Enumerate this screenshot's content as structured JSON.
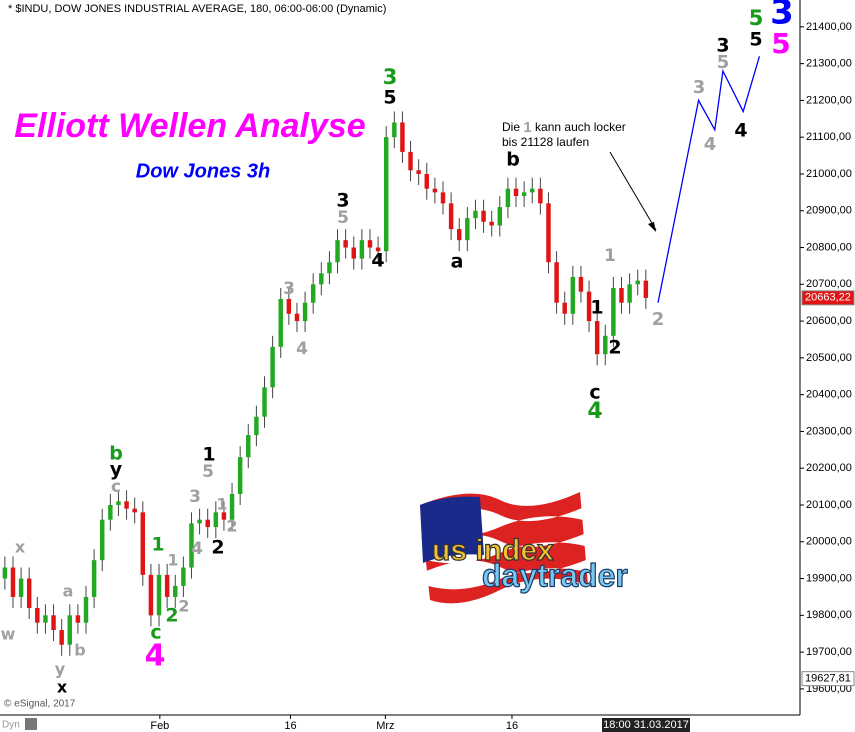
{
  "chart_data": {
    "type": "candlestick",
    "title": "* $INDU, DOW JONES INDUSTRIAL AVERAGE, 180, 06:00-06:00 (Dynamic)",
    "heading": "Elliott Wellen Analyse",
    "subheading": "Dow Jones 3h",
    "x": [
      0,
      1,
      2,
      3,
      4,
      5,
      6,
      7,
      8,
      9,
      10,
      11,
      12,
      13,
      14,
      15,
      16,
      17,
      18,
      19,
      20,
      21,
      22,
      23,
      24,
      25,
      26,
      27,
      28,
      29,
      30,
      31,
      32,
      33,
      34,
      35,
      36,
      37,
      38,
      39,
      40,
      41,
      42,
      43,
      44,
      45,
      46,
      47,
      48,
      49,
      50,
      51,
      52,
      53,
      54,
      55,
      56,
      57,
      58,
      59,
      60,
      61,
      62,
      63,
      64,
      65,
      66,
      67,
      68,
      69,
      70,
      71,
      72,
      73,
      74,
      75,
      76,
      77,
      78,
      79
    ],
    "open": [
      19900,
      19930,
      19850,
      19900,
      19820,
      19780,
      19800,
      19760,
      19720,
      19800,
      19780,
      19850,
      19950,
      20060,
      20100,
      20110,
      20090,
      20080,
      19910,
      19800,
      19910,
      19850,
      19880,
      19930,
      20050,
      20060,
      20040,
      20080,
      20060,
      20130,
      20230,
      20290,
      20340,
      20420,
      20530,
      20660,
      20620,
      20600,
      20650,
      20700,
      20730,
      20760,
      20820,
      20800,
      20770,
      20820,
      20800,
      20790,
      21100,
      21140,
      21060,
      21010,
      21000,
      20960,
      20950,
      20920,
      20850,
      20820,
      20880,
      20900,
      20870,
      20860,
      20910,
      20960,
      20940,
      20950,
      20960,
      20920,
      20760,
      20650,
      20620,
      20720,
      20680,
      20600,
      20510,
      20560,
      20690,
      20650,
      20700,
      20710
    ],
    "high": [
      19960,
      19960,
      19930,
      19930,
      19850,
      19830,
      19830,
      19790,
      19830,
      19830,
      19880,
      19980,
      20090,
      20130,
      20140,
      20140,
      20120,
      20110,
      19940,
      19940,
      19940,
      19910,
      19960,
      20080,
      20090,
      20090,
      20110,
      20110,
      20160,
      20260,
      20320,
      20370,
      20450,
      20560,
      20690,
      20690,
      20650,
      20680,
      20730,
      20760,
      20790,
      20850,
      20850,
      20830,
      20850,
      20850,
      20830,
      21130,
      21170,
      21170,
      21090,
      21040,
      21030,
      20990,
      20980,
      20950,
      20880,
      20910,
      20930,
      20930,
      20900,
      20940,
      20990,
      20990,
      20980,
      20990,
      20990,
      20950,
      20790,
      20680,
      20750,
      20750,
      20710,
      20630,
      20590,
      20720,
      20720,
      20730,
      20740,
      20740
    ],
    "low": [
      19870,
      19820,
      19820,
      19790,
      19750,
      19750,
      19730,
      19690,
      19690,
      19750,
      19750,
      19820,
      19920,
      20030,
      20070,
      20060,
      20050,
      19880,
      19770,
      19770,
      19820,
      19820,
      19850,
      19900,
      20020,
      20010,
      20010,
      20030,
      20030,
      20100,
      20200,
      20260,
      20310,
      20390,
      20500,
      20590,
      20570,
      20570,
      20620,
      20670,
      20700,
      20730,
      20770,
      20740,
      20740,
      20770,
      20760,
      20760,
      21070,
      21030,
      20980,
      20970,
      20930,
      20920,
      20890,
      20820,
      20790,
      20790,
      20850,
      20840,
      20830,
      20830,
      20880,
      20910,
      20910,
      20920,
      20890,
      20730,
      20620,
      20590,
      20590,
      20650,
      20570,
      20480,
      20480,
      20530,
      20620,
      20620,
      20670,
      20633
    ],
    "close": [
      19930,
      19850,
      19900,
      19820,
      19780,
      19800,
      19760,
      19720,
      19800,
      19780,
      19850,
      19950,
      20060,
      20100,
      20110,
      20090,
      20080,
      19910,
      19800,
      19910,
      19850,
      19880,
      19930,
      20050,
      20060,
      20040,
      20080,
      20060,
      20130,
      20230,
      20290,
      20340,
      20420,
      20530,
      20660,
      20620,
      20600,
      20650,
      20700,
      20730,
      20760,
      20820,
      20800,
      20770,
      20820,
      20800,
      20790,
      21100,
      21140,
      21060,
      21010,
      21000,
      20960,
      20950,
      20920,
      20850,
      20820,
      20880,
      20900,
      20870,
      20860,
      20910,
      20960,
      20940,
      20950,
      20960,
      20920,
      20760,
      20650,
      20620,
      20720,
      20680,
      20600,
      20510,
      20560,
      20690,
      20650,
      20700,
      20710,
      20663
    ],
    "up_color": "#22a822",
    "down_color": "#e01414",
    "projection": {
      "color": "#0000ff",
      "x": [
        80.5,
        85.5,
        87.5,
        88.5,
        91,
        93
      ],
      "values": [
        20650,
        21200,
        21120,
        21280,
        21170,
        21320
      ]
    },
    "xlim": [
      -0.6,
      98
    ],
    "ylim": [
      19529,
      21473
    ],
    "xticks": [
      {
        "value": 19.1,
        "label": "Feb"
      },
      {
        "value": 35.2,
        "label": "16"
      },
      {
        "value": 46.9,
        "label": "Mrz"
      },
      {
        "value": 62.5,
        "label": "16"
      }
    ],
    "yticks": [
      {
        "value": 19600,
        "label": "19600,00"
      },
      {
        "value": 19700,
        "label": "19700,00"
      },
      {
        "value": 19800,
        "label": "19800,00"
      },
      {
        "value": 19900,
        "label": "19900,00"
      },
      {
        "value": 20000,
        "label": "20000,00"
      },
      {
        "value": 20100,
        "label": "20100,00"
      },
      {
        "value": 20200,
        "label": "20200,00"
      },
      {
        "value": 20300,
        "label": "20300,00"
      },
      {
        "value": 20400,
        "label": "20400,00"
      },
      {
        "value": 20500,
        "label": "20500,00"
      },
      {
        "value": 20600,
        "label": "20600,00"
      },
      {
        "value": 20700,
        "label": "20700,00"
      },
      {
        "value": 20800,
        "label": "20800,00"
      },
      {
        "value": 20900,
        "label": "20900,00"
      },
      {
        "value": 21000,
        "label": "21000,00"
      },
      {
        "value": 21100,
        "label": "21100,00"
      },
      {
        "value": 21200,
        "label": "21200,00"
      },
      {
        "value": 21300,
        "label": "21300,00"
      },
      {
        "value": 21400,
        "label": "21400,00"
      }
    ],
    "last_price": {
      "value": 20663.22,
      "label": "20663,22"
    },
    "low_price": {
      "value": 19627.81,
      "label": "19627,81"
    },
    "annotation": {
      "before": "Die",
      "wave": "1",
      "after": "kann auch locker",
      "line2": "bis 21128 laufen"
    },
    "wave_labels": [
      {
        "text": "x",
        "color": "#a0a0a0"
      },
      {
        "text": "w",
        "color": "#a0a0a0"
      },
      {
        "text": "a",
        "color": "#a0a0a0"
      },
      {
        "text": "y",
        "color": "#a0a0a0"
      },
      {
        "text": "x",
        "color": "#000000"
      },
      {
        "text": "b",
        "color": "#a0a0a0"
      },
      {
        "text": "b",
        "color": "#1a9a1a"
      },
      {
        "text": "y",
        "color": "#000000"
      },
      {
        "text": "c",
        "color": "#a0a0a0"
      },
      {
        "text": "1",
        "color": "#1a9a1a"
      },
      {
        "text": "1",
        "color": "#a0a0a0"
      },
      {
        "text": "2",
        "color": "#1a9a1a"
      },
      {
        "text": "2",
        "color": "#a0a0a0"
      },
      {
        "text": "c",
        "color": "#1a9a1a"
      },
      {
        "text": "4",
        "color": "#ff00ff"
      },
      {
        "text": "1",
        "color": "#000000"
      },
      {
        "text": "5",
        "color": "#a0a0a0"
      },
      {
        "text": "3",
        "color": "#a0a0a0"
      },
      {
        "text": "1",
        "color": "#a0a0a0"
      },
      {
        "text": "2",
        "color": "#a0a0a0"
      },
      {
        "text": "4",
        "color": "#a0a0a0"
      },
      {
        "text": "2",
        "color": "#000000"
      },
      {
        "text": "3",
        "color": "#a0a0a0"
      },
      {
        "text": "4",
        "color": "#a0a0a0"
      },
      {
        "text": "3",
        "color": "#000000"
      },
      {
        "text": "5",
        "color": "#a0a0a0"
      },
      {
        "text": "4",
        "color": "#000000"
      },
      {
        "text": "3",
        "color": "#1a9a1a"
      },
      {
        "text": "5",
        "color": "#000000"
      },
      {
        "text": "b",
        "color": "#000000"
      },
      {
        "text": "a",
        "color": "#000000"
      },
      {
        "text": "1",
        "color": "#a0a0a0"
      },
      {
        "text": "1",
        "color": "#000000"
      },
      {
        "text": "2",
        "color": "#000000"
      },
      {
        "text": "c",
        "color": "#000000"
      },
      {
        "text": "4",
        "color": "#1a9a1a"
      },
      {
        "text": "2",
        "color": "#a0a0a0"
      },
      {
        "text": "3",
        "color": "#a0a0a0"
      },
      {
        "text": "4",
        "color": "#a0a0a0"
      },
      {
        "text": "3",
        "color": "#000000"
      },
      {
        "text": "5",
        "color": "#a0a0a0"
      },
      {
        "text": "4",
        "color": "#000000"
      },
      {
        "text": "5",
        "color": "#1a9a1a"
      },
      {
        "text": "5",
        "color": "#000000"
      },
      {
        "text": "3",
        "color": "#0000ff"
      },
      {
        "text": "5",
        "color": "#ff00ff"
      }
    ]
  },
  "logo": {
    "top": "us index",
    "bottom": "daytrader"
  },
  "copyright": "© eSignal, 2017",
  "toolbar": "Dyn",
  "time_box": "18:00 31.03.2017"
}
